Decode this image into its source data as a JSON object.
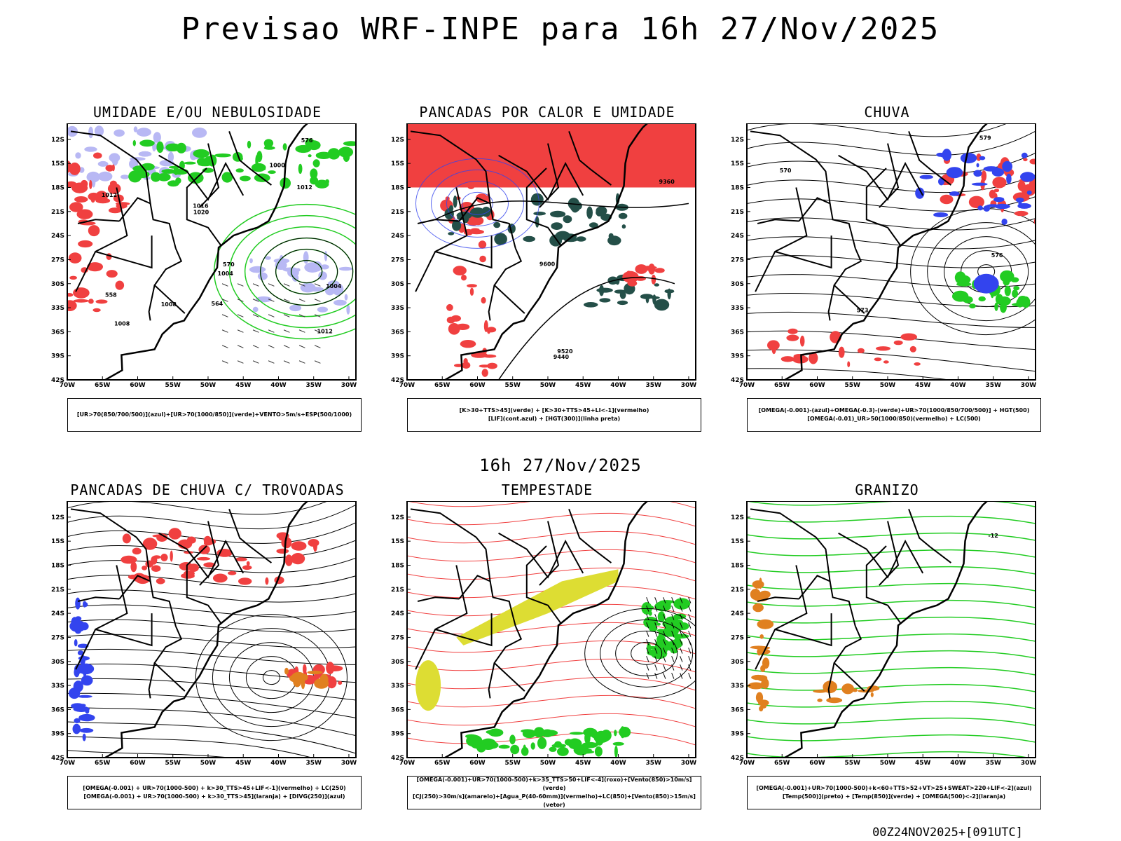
{
  "title": "Previsao WRF-INPE  para 16h 27/Nov/2025",
  "subtitle": "16h 27/Nov/2025",
  "footer": "00Z24NOV2025+[091UTC]",
  "axes": {
    "lat_labels": [
      "12S",
      "15S",
      "18S",
      "21S",
      "24S",
      "27S",
      "30S",
      "33S",
      "36S",
      "39S",
      "42S"
    ],
    "lon_labels": [
      "70W",
      "65W",
      "60W",
      "55W",
      "50W",
      "45W",
      "40W",
      "35W",
      "30W"
    ]
  },
  "panels": [
    {
      "title": "UMIDADE E/OU NEBULOSIDADE",
      "legend": [
        "[UR>70(850/700/500)](azul)+[UR>70(1000/850)](verde)+VENTO>5m/s+ESP(500/1000)"
      ],
      "labels": [
        "1012",
        "1004",
        "1008",
        "1012",
        "1016",
        "1012",
        "1008",
        "1020",
        "1004",
        "1000",
        "576",
        "570",
        "564",
        "558"
      ]
    },
    {
      "title": "PANCADAS POR CALOR E UMIDADE",
      "legend": [
        "[K>30+TTS>45](verde) + [K>30+TTS>45+LI<-1](vermelho)",
        "[LIF](cont.azul) + [HGT(300)](linha preta)"
      ],
      "labels": [
        "9600",
        "9520",
        "9440",
        "9360"
      ]
    },
    {
      "title": "CHUVA",
      "legend": [
        "[OMEGA(-0.001)-(azul)+OMEGA(-0.3)-(verde)+UR>70(1000/850/700/500)] + HGT(500)",
        "[OMEGA(-0.01)_UR>50(1000/850)(vermelho) + LC(500)"
      ],
      "labels": [
        "579",
        "576",
        "573",
        "570"
      ]
    },
    {
      "title": "PANCADAS DE CHUVA C/ TROVOADAS",
      "legend": [
        "[OMEGA(-0.001) + UR>70(1000-500) + k>30_TTS>45+LIF<-1](vermelho) + LC(250)",
        "[OMEGA(-0.001) + UR>70(1000-500) + k>30_TTS>45](laranja) + [DIVG(250)](azul)"
      ],
      "labels": []
    },
    {
      "title": "TEMPESTADE",
      "legend": [
        "[OMEGA(-0.001)+UR>70(1000-500)+k>35_TTS>50+LIF<-4](roxo)+[Vento(850)>10m/s](verde)",
        "[CJ(250)>30m/s](amarelo)+[Agua_P(40-60mm)](vermelho)+LC(850)+[Vento(850)>15m/s](vetor)"
      ],
      "labels": []
    },
    {
      "title": "GRANIZO",
      "legend": [
        "[OMEGA(-0.001)+UR>70(1000-500)+k<60+TTS>52+VT>25+SWEAT>220+LIF<-2](azul)",
        "[Temp(500)](preto) + [Temp(850)](verde) + [OMEGA(500)<-2](laranja)"
      ],
      "labels": [
        "-12"
      ]
    }
  ],
  "colors": {
    "blue": "#3344ee",
    "green": "#22cc22",
    "red": "#f04040",
    "orange": "#e08020",
    "yellow": "#dddd33",
    "darkgreen": "#244f48",
    "lavender": "#b8b8f4"
  }
}
